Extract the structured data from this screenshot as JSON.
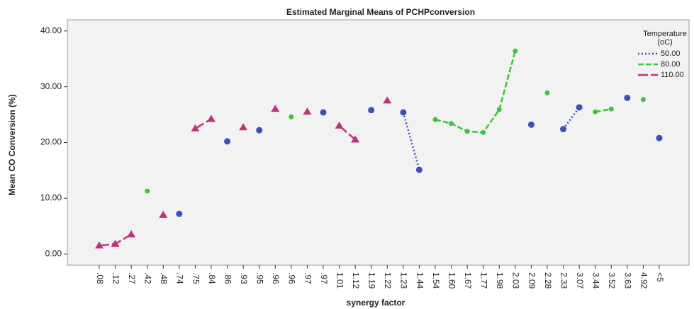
{
  "chart_data": {
    "type": "line",
    "title": "Estimated Marginal Means of PCHPconversion",
    "x_label": "synergy factor",
    "y_label": "Mean CO Conversion (%)",
    "legend_title": [
      "Temperature",
      "(oC)"
    ],
    "legend": "top-right",
    "categories": [
      ".08",
      ".12",
      ".27",
      ".42",
      ".48",
      ".74",
      ".75",
      ".84",
      ".86",
      ".93",
      ".95",
      ".96",
      ".96",
      ".97",
      ".97",
      "1.01",
      "1.12",
      "1.19",
      "1.22",
      "1.23",
      "1.44",
      "1.54",
      "1.60",
      "1.67",
      "1.77",
      "1.98",
      "2.03",
      "2.09",
      "2.28",
      "2.33",
      "3.07",
      "3.44",
      "3.52",
      "3.63",
      "4.92",
      "<5"
    ],
    "series": [
      {
        "name": "50.00",
        "color": "#3d4fb8",
        "dash": "2,3",
        "values": [
          null,
          null,
          null,
          null,
          null,
          7.2,
          null,
          null,
          20.2,
          null,
          22.2,
          null,
          null,
          null,
          25.4,
          null,
          null,
          25.8,
          null,
          25.4,
          15.1,
          null,
          null,
          null,
          null,
          null,
          null,
          23.2,
          null,
          22.4,
          26.3,
          null,
          null,
          28.0,
          null,
          20.8
        ]
      },
      {
        "name": "80.00",
        "color": "#3cc43c",
        "dash": "8,3",
        "values": [
          null,
          null,
          null,
          11.3,
          null,
          null,
          null,
          null,
          null,
          null,
          null,
          null,
          24.6,
          null,
          null,
          null,
          null,
          null,
          null,
          null,
          null,
          24.1,
          23.4,
          22.0,
          21.8,
          25.9,
          36.4,
          null,
          28.9,
          null,
          null,
          25.5,
          26.0,
          null,
          27.7,
          null
        ]
      },
      {
        "name": "110.00",
        "color": "#c0337a",
        "dash": "14,4",
        "values": [
          1.5,
          1.8,
          3.5,
          null,
          7.0,
          null,
          22.5,
          24.2,
          null,
          22.7,
          null,
          26.0,
          null,
          25.5,
          null,
          23.0,
          20.5,
          null,
          27.5,
          null,
          null,
          null,
          null,
          null,
          null,
          null,
          null,
          null,
          null,
          null,
          null,
          null,
          null,
          null,
          null,
          null
        ]
      }
    ],
    "ylim": [
      -2,
      42
    ],
    "yticks": [
      {
        "value": 0,
        "label": "0.00"
      },
      {
        "value": 10,
        "label": "10.00"
      },
      {
        "value": 20,
        "label": "20.00"
      },
      {
        "value": 30,
        "label": "30.00"
      },
      {
        "value": 40,
        "label": "40.00"
      }
    ]
  }
}
